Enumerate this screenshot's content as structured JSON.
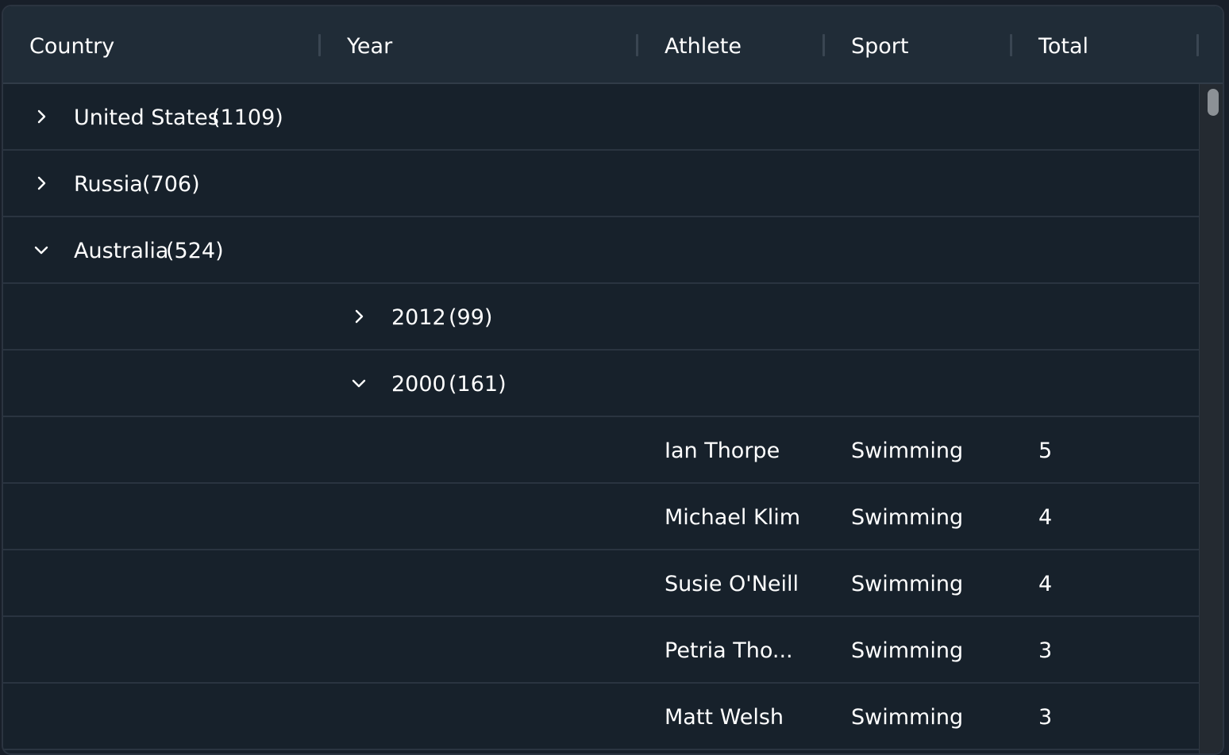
{
  "columns": [
    "Country",
    "Year",
    "Athlete",
    "Sport",
    "Total"
  ],
  "groups": [
    {
      "label": "United States",
      "count": "(1109)",
      "expanded": false
    },
    {
      "label": "Russia",
      "count": "(706)",
      "expanded": false
    },
    {
      "label": "Australia",
      "count": "(524)",
      "expanded": true
    }
  ],
  "subgroups": [
    {
      "label": "2012",
      "count": "(99)",
      "expanded": false
    },
    {
      "label": "2000",
      "count": "(161)",
      "expanded": true
    }
  ],
  "rows": [
    {
      "athlete": "Ian Thorpe",
      "sport": "Swimming",
      "total": "5"
    },
    {
      "athlete": "Michael Klim",
      "sport": "Swimming",
      "total": "4"
    },
    {
      "athlete": "Susie O'Neill",
      "sport": "Swimming",
      "total": "4"
    },
    {
      "athlete": "Petria Tho...",
      "sport": "Swimming",
      "total": "3"
    },
    {
      "athlete": "Matt Welsh",
      "sport": "Swimming",
      "total": "3"
    }
  ]
}
